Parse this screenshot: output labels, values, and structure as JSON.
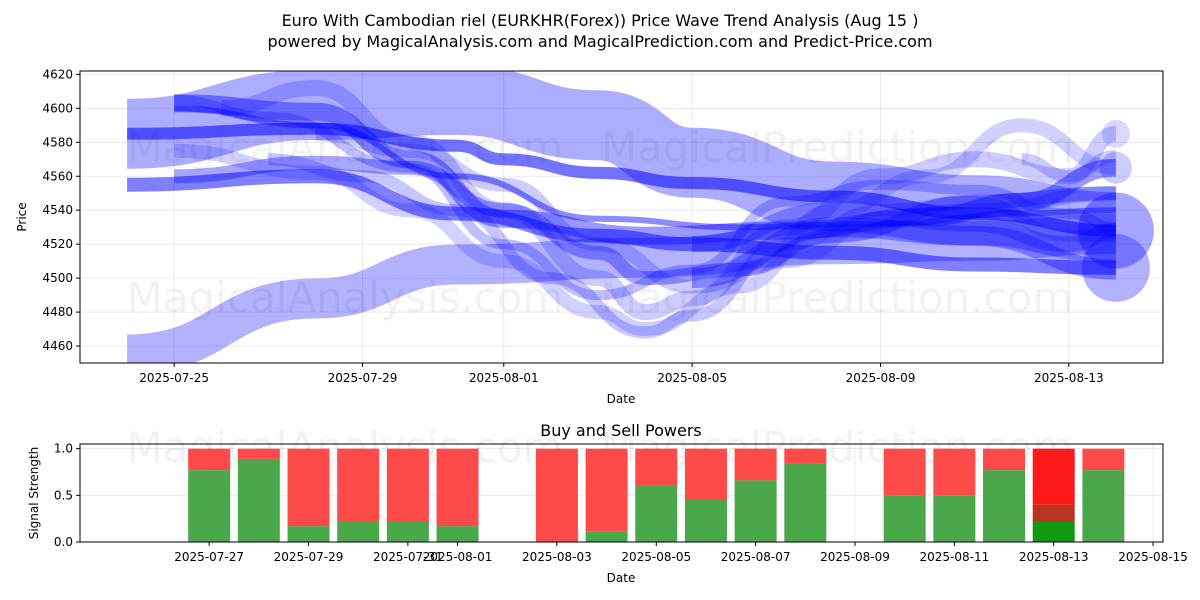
{
  "figure": {
    "title_line1": "Euro With Cambodian riel (EURKHR(Forex)) Price Wave Trend Analysis (Aug 15 )",
    "title_line2": "powered by MagicalAnalysis.com and MagicalPrediction.com and Predict-Price.com",
    "watermarks": [
      "MagicalAnalysis.com",
      "MagicalPrediction.com"
    ],
    "colors": {
      "wave": "#0000ff",
      "buy": "#4aa84a",
      "sell": "#ff4a4a",
      "buy_strong": "#129812",
      "sell_strong": "#ff1a1a"
    }
  },
  "chart_data": [
    {
      "type": "area",
      "title": "",
      "xlabel": "Date",
      "ylabel": "Price",
      "xlim": [
        "2025-07-23",
        "2025-08-15"
      ],
      "ylim": [
        4450,
        4622
      ],
      "x_ticks": [
        "2025-07-25",
        "2025-07-29",
        "2025-08-01",
        "2025-08-05",
        "2025-08-09",
        "2025-08-13"
      ],
      "y_ticks": [
        4460,
        4480,
        4500,
        4520,
        4540,
        4560,
        4580,
        4600,
        4620
      ],
      "grid": true,
      "series": [
        {
          "style": "band",
          "points": [
            [
              "2025-07-24",
              4585
            ],
            [
              "2025-07-28",
              4602
            ],
            [
              "2025-07-31",
              4605
            ],
            [
              "2025-08-03",
              4590
            ],
            [
              "2025-08-05",
              4568
            ],
            [
              "2025-08-08",
              4548
            ],
            [
              "2025-08-11",
              4540
            ],
            [
              "2025-08-14",
              4530
            ]
          ],
          "width": 70,
          "opacity": 0.32
        },
        {
          "style": "band",
          "points": [
            [
              "2025-07-24",
              4455
            ],
            [
              "2025-07-28",
              4488
            ],
            [
              "2025-07-31",
              4508
            ],
            [
              "2025-08-04",
              4512
            ],
            [
              "2025-08-08",
              4520
            ],
            [
              "2025-08-11",
              4522
            ],
            [
              "2025-08-14",
              4526
            ]
          ],
          "width": 40,
          "opacity": 0.3
        },
        {
          "style": "band",
          "points": [
            [
              "2025-07-25",
              4603
            ],
            [
              "2025-07-28",
              4598
            ],
            [
              "2025-07-30",
              4570
            ],
            [
              "2025-08-01",
              4535
            ],
            [
              "2025-08-04",
              4525
            ],
            [
              "2025-08-07",
              4528
            ],
            [
              "2025-08-10",
              4536
            ],
            [
              "2025-08-12",
              4545
            ],
            [
              "2025-08-14",
              4565
            ]
          ],
          "width": 18,
          "opacity": 0.4
        },
        {
          "style": "band",
          "points": [
            [
              "2025-07-25",
              4560
            ],
            [
              "2025-07-28",
              4568
            ],
            [
              "2025-07-30",
              4565
            ],
            [
              "2025-08-01",
              4540
            ],
            [
              "2025-08-03",
              4515
            ],
            [
              "2025-08-04",
              4500
            ],
            [
              "2025-08-06",
              4505
            ],
            [
              "2025-08-08",
              4525
            ],
            [
              "2025-08-11",
              4545
            ],
            [
              "2025-08-14",
              4550
            ]
          ],
          "width": 14,
          "opacity": 0.35
        },
        {
          "style": "band",
          "points": [
            [
              "2025-07-24",
              4585
            ],
            [
              "2025-07-28",
              4588
            ],
            [
              "2025-07-31",
              4578
            ],
            [
              "2025-08-01",
              4570
            ],
            [
              "2025-08-03",
              4562
            ],
            [
              "2025-08-05",
              4556
            ],
            [
              "2025-08-08",
              4548
            ],
            [
              "2025-08-11",
              4538
            ],
            [
              "2025-08-14",
              4528
            ]
          ],
          "width": 12,
          "opacity": 0.55
        },
        {
          "style": "band",
          "points": [
            [
              "2025-07-24",
              4555
            ],
            [
              "2025-07-28",
              4560
            ],
            [
              "2025-07-31",
              4538
            ],
            [
              "2025-08-03",
              4525
            ],
            [
              "2025-08-05",
              4520
            ],
            [
              "2025-08-08",
              4515
            ],
            [
              "2025-08-11",
              4508
            ],
            [
              "2025-08-14",
              4506
            ]
          ],
          "width": 14,
          "opacity": 0.5
        },
        {
          "style": "band",
          "points": [
            [
              "2025-07-26",
              4600
            ],
            [
              "2025-07-28",
              4612
            ],
            [
              "2025-07-30",
              4580
            ],
            [
              "2025-08-01",
              4540
            ],
            [
              "2025-08-03",
              4500
            ],
            [
              "2025-08-04",
              4480
            ],
            [
              "2025-08-05",
              4488
            ],
            [
              "2025-08-07",
              4530
            ],
            [
              "2025-08-09",
              4560
            ],
            [
              "2025-08-11",
              4570
            ],
            [
              "2025-08-13",
              4560
            ],
            [
              "2025-08-14",
              4585
            ]
          ],
          "width": 16,
          "opacity": 0.2
        },
        {
          "style": "band",
          "points": [
            [
              "2025-07-25",
              4575
            ],
            [
              "2025-07-28",
              4562
            ],
            [
              "2025-07-30",
              4540
            ],
            [
              "2025-08-01",
              4510
            ],
            [
              "2025-08-03",
              4480
            ],
            [
              "2025-08-04",
              4470
            ],
            [
              "2025-08-06",
              4495
            ],
            [
              "2025-08-08",
              4540
            ],
            [
              "2025-08-10",
              4560
            ],
            [
              "2025-08-12",
              4590
            ],
            [
              "2025-08-14",
              4565
            ]
          ],
          "width": 14,
          "opacity": 0.18
        },
        {
          "style": "band",
          "points": [
            [
              "2025-07-27",
              4570
            ],
            [
              "2025-07-29",
              4560
            ],
            [
              "2025-07-31",
              4540
            ],
            [
              "2025-08-02",
              4500
            ],
            [
              "2025-08-04",
              4468
            ],
            [
              "2025-08-05",
              4478
            ],
            [
              "2025-08-07",
              4520
            ],
            [
              "2025-08-09",
              4540
            ],
            [
              "2025-08-11",
              4545
            ],
            [
              "2025-08-13",
              4525
            ],
            [
              "2025-08-14",
              4525
            ]
          ],
          "width": 12,
          "opacity": 0.22
        },
        {
          "style": "band",
          "points": [
            [
              "2025-07-25",
              4605
            ],
            [
              "2025-07-27",
              4595
            ],
            [
              "2025-07-30",
              4565
            ],
            [
              "2025-08-01",
              4520
            ],
            [
              "2025-08-03",
              4490
            ],
            [
              "2025-08-05",
              4505
            ],
            [
              "2025-08-07",
              4545
            ],
            [
              "2025-08-09",
              4555
            ],
            [
              "2025-08-11",
              4552
            ],
            [
              "2025-08-13",
              4538
            ],
            [
              "2025-08-14",
              4530
            ]
          ],
          "width": 10,
          "opacity": 0.25
        },
        {
          "style": "band",
          "points": [
            [
              "2025-07-28",
              4585
            ],
            [
              "2025-07-30",
              4575
            ],
            [
              "2025-08-01",
              4555
            ],
            [
              "2025-08-03",
              4520
            ],
            [
              "2025-08-05",
              4495
            ],
            [
              "2025-08-07",
              4510
            ],
            [
              "2025-08-09",
              4535
            ],
            [
              "2025-08-11",
              4540
            ],
            [
              "2025-08-14",
              4550
            ]
          ],
          "width": 14,
          "opacity": 0.2
        },
        {
          "style": "band",
          "points": [
            [
              "2025-08-05",
              4500
            ],
            [
              "2025-08-08",
              4530
            ],
            [
              "2025-08-11",
              4525
            ],
            [
              "2025-08-14",
              4505
            ]
          ],
          "width": 20,
          "opacity": 0.35
        },
        {
          "style": "band",
          "points": [
            [
              "2025-08-05",
              4520
            ],
            [
              "2025-08-08",
              4540
            ],
            [
              "2025-08-11",
              4532
            ],
            [
              "2025-08-13",
              4520
            ],
            [
              "2025-08-14",
              4528
            ]
          ],
          "width": 16,
          "opacity": 0.3
        },
        {
          "style": "band",
          "points": [
            [
              "2025-08-12",
              4570
            ],
            [
              "2025-08-13",
              4560
            ],
            [
              "2025-08-14",
              4572
            ]
          ],
          "width": 12,
          "opacity": 0.2
        },
        {
          "style": "band",
          "points": [
            [
              "2025-07-25",
              4600
            ],
            [
              "2025-07-28",
              4590
            ],
            [
              "2025-07-31",
              4560
            ],
            [
              "2025-08-03",
              4535
            ],
            [
              "2025-08-06",
              4530
            ],
            [
              "2025-08-09",
              4532
            ],
            [
              "2025-08-12",
              4538
            ],
            [
              "2025-08-14",
              4540
            ]
          ],
          "width": 6,
          "opacity": 0.45
        },
        {
          "style": "dot",
          "points": [
            [
              "2025-08-14",
              4528
            ]
          ],
          "width": 38,
          "opacity": 0.35
        },
        {
          "style": "dot",
          "points": [
            [
              "2025-08-14",
              4506
            ]
          ],
          "width": 34,
          "opacity": 0.3
        },
        {
          "style": "dot",
          "points": [
            [
              "2025-08-14",
              4565
            ]
          ],
          "width": 16,
          "opacity": 0.2
        },
        {
          "style": "dot",
          "points": [
            [
              "2025-08-14",
              4585
            ]
          ],
          "width": 14,
          "opacity": 0.15
        }
      ]
    },
    {
      "type": "bar",
      "title": "Buy and Sell Powers",
      "xlabel": "Date",
      "ylabel": "Signal Strength",
      "xlim": [
        "2025-07-25",
        "2025-08-15"
      ],
      "ylim": [
        0,
        1.05
      ],
      "x_ticks": [
        "2025-07-27",
        "2025-07-29",
        "2025-07-31",
        "2025-08-01",
        "2025-08-03",
        "2025-08-05",
        "2025-08-07",
        "2025-08-09",
        "2025-08-11",
        "2025-08-13",
        "2025-08-15"
      ],
      "y_ticks": [
        "0.0",
        "0.5",
        "1.0"
      ],
      "grid": true,
      "categories": [
        "2025-07-27",
        "2025-07-28",
        "2025-07-29",
        "2025-07-30",
        "2025-07-31",
        "2025-08-01",
        "2025-08-03",
        "2025-08-04",
        "2025-08-05",
        "2025-08-06",
        "2025-08-07",
        "2025-08-08",
        "2025-08-10",
        "2025-08-11",
        "2025-08-12",
        "2025-08-13",
        "2025-08-14"
      ],
      "series": [
        {
          "values": [
            0.77,
            0.89,
            0.17,
            0.22,
            0.22,
            0.17,
            0.0,
            0.11,
            0.61,
            0.45,
            0.66,
            0.84,
            0.5,
            0.5,
            0.77,
            0.22,
            0.77
          ]
        },
        {
          "values": [
            0.23,
            0.11,
            0.83,
            0.78,
            0.78,
            0.83,
            1.0,
            0.89,
            0.39,
            0.55,
            0.34,
            0.16,
            0.5,
            0.5,
            0.23,
            0.78,
            0.23
          ]
        }
      ],
      "highlight": {
        "date": "2025-08-13",
        "buy_strong": 0.22,
        "mid": 0.18,
        "sell_strong": 0.6
      }
    }
  ]
}
